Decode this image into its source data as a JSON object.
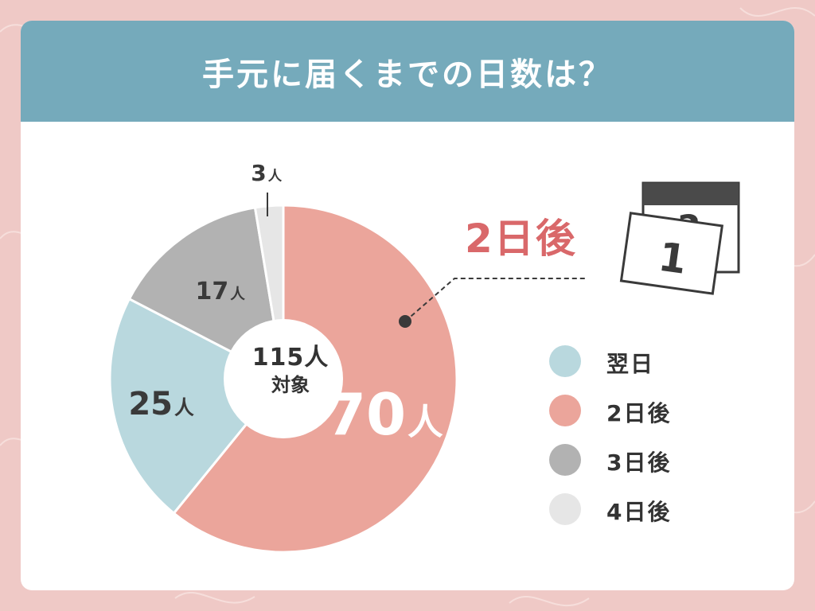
{
  "title": "手元に届くまでの日数は？",
  "center": {
    "line1": "115人",
    "line2": "対象"
  },
  "callout": "2日後",
  "calendar": {
    "back_number": "2",
    "front_number": "1"
  },
  "colors": {
    "background": "#efc9c6",
    "header": "#75aabb",
    "callout_text": "#d9686a",
    "slice_next_day": "#b9d8de",
    "slice_2_days": "#eba59b",
    "slice_3_days": "#b2b2b2",
    "slice_4_days": "#e6e6e6"
  },
  "chart_data": {
    "type": "pie",
    "title": "手元に届くまでの日数は？",
    "total": 115,
    "unit": "人",
    "slices": [
      {
        "label": "翌日",
        "value": 25,
        "value_label": "25",
        "color": "#b9d8de"
      },
      {
        "label": "2日後",
        "value": 70,
        "value_label": "70",
        "color": "#eba59b"
      },
      {
        "label": "3日後",
        "value": 17,
        "value_label": "17",
        "color": "#b2b2b2"
      },
      {
        "label": "4日後",
        "value": 3,
        "value_label": "3",
        "color": "#e6e6e6"
      }
    ],
    "legend": [
      "翌日",
      "2日後",
      "3日後",
      "4日後"
    ],
    "legend_position": "right",
    "highlight": "2日後"
  }
}
